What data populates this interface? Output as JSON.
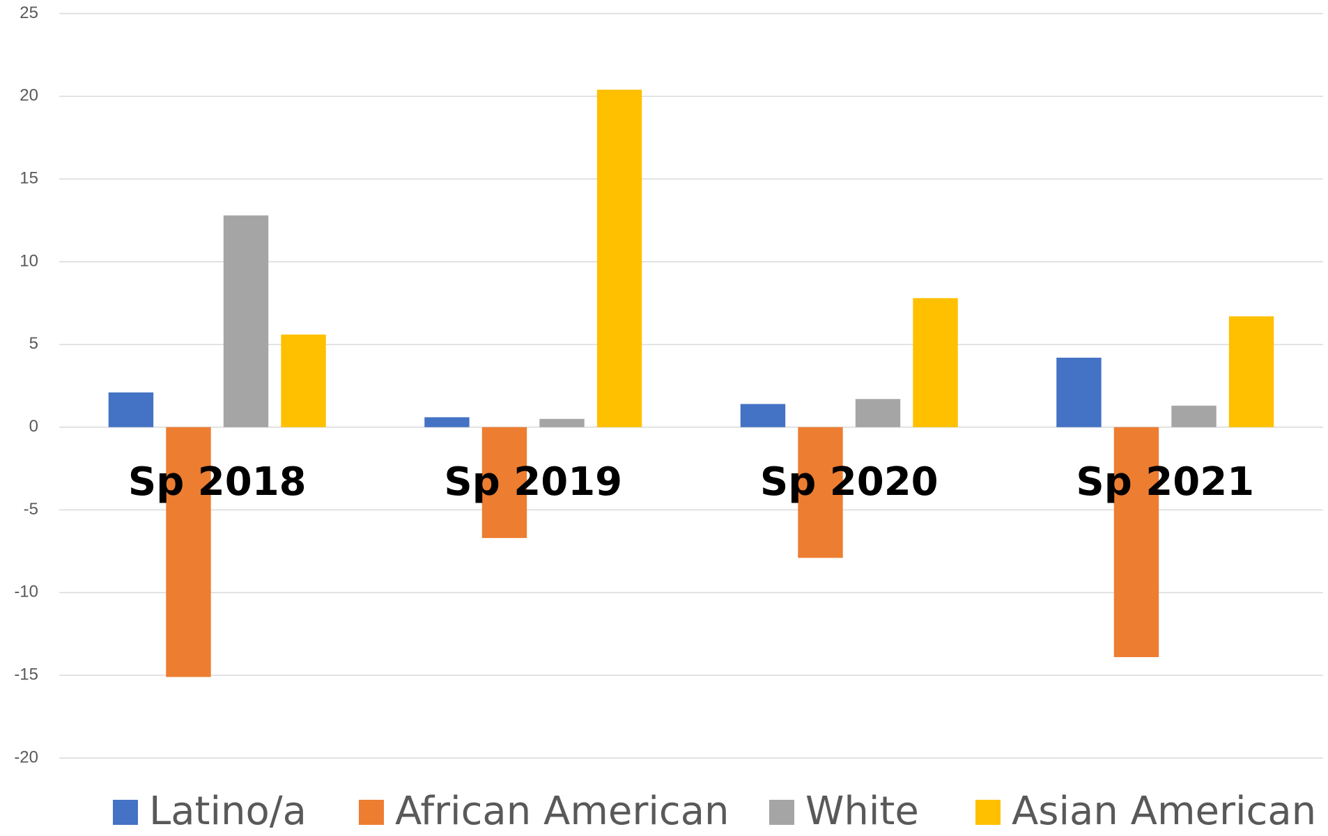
{
  "chart_data": {
    "type": "bar",
    "categories": [
      "Sp 2018",
      "Sp 2019",
      "Sp 2020",
      "Sp 2021"
    ],
    "series": [
      {
        "name": "Latino/a",
        "color": "#4472c4",
        "values": [
          2.1,
          0.6,
          1.4,
          4.2
        ]
      },
      {
        "name": "African American",
        "color": "#ed7d31",
        "values": [
          -15.1,
          -6.7,
          -7.9,
          -13.9
        ]
      },
      {
        "name": "White",
        "color": "#a5a5a5",
        "values": [
          12.8,
          0.5,
          1.7,
          1.3
        ]
      },
      {
        "name": "Asian American",
        "color": "#ffc000",
        "values": [
          5.6,
          20.4,
          7.8,
          6.7
        ]
      }
    ],
    "ylim": [
      -20,
      25
    ],
    "yticks": [
      -20,
      -15,
      -10,
      -5,
      0,
      5,
      10,
      15,
      20,
      25
    ],
    "grid": true,
    "legend": "bottom"
  }
}
